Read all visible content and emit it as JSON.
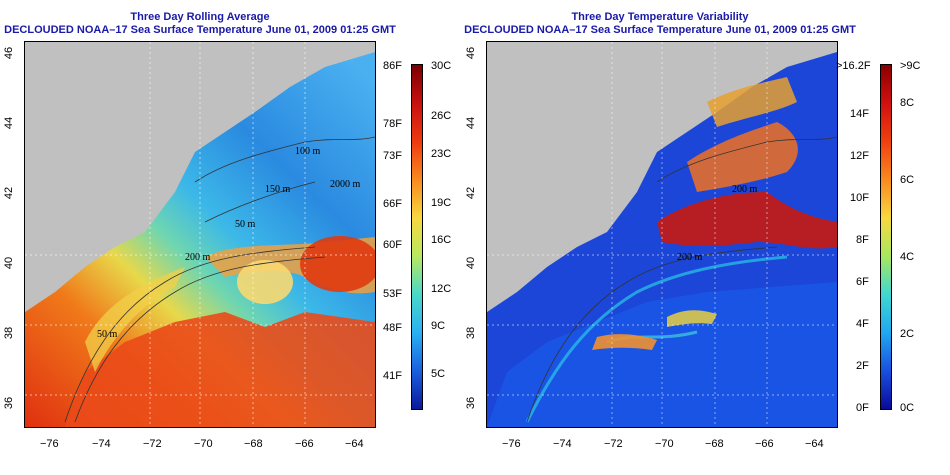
{
  "panels": [
    {
      "title": "Three Day Rolling Average",
      "subtitle": "DECLOUDED NOAA–17 Sea Surface Temperature June 01, 2009 01:25 GMT",
      "colorbar_left": [
        "86F",
        "78F",
        "73F",
        "66F",
        "60F",
        "53F",
        "48F",
        "41F"
      ],
      "colorbar_right": [
        "30C",
        "26C",
        "23C",
        "19C",
        "16C",
        "12C",
        "9C",
        "5C"
      ],
      "contours": [
        "100 m",
        "150 m",
        "2000 m",
        "50 m",
        "200 m",
        "50 m"
      ]
    },
    {
      "title": "Three Day Temperature Variability",
      "subtitle": "DECLOUDED NOAA–17 Sea Surface Temperature June 01, 2009 01:25 GMT",
      "colorbar_left": [
        ">16.2F",
        "14F",
        "12F",
        "10F",
        "8F",
        "6F",
        "4F",
        "2F",
        "0F"
      ],
      "colorbar_right": [
        ">9C",
        "8C",
        "6C",
        "4C",
        "2C",
        "0C"
      ],
      "contours": [
        "200 m",
        "200 m"
      ]
    }
  ],
  "axes": {
    "x_ticks": [
      "−76",
      "−74",
      "−72",
      "−70",
      "−68",
      "−66",
      "−64"
    ],
    "y_ticks": [
      "46",
      "44",
      "42",
      "40",
      "38",
      "36"
    ]
  },
  "colors": {
    "land": "#c0c0c0",
    "title": "#1a1aa8"
  }
}
